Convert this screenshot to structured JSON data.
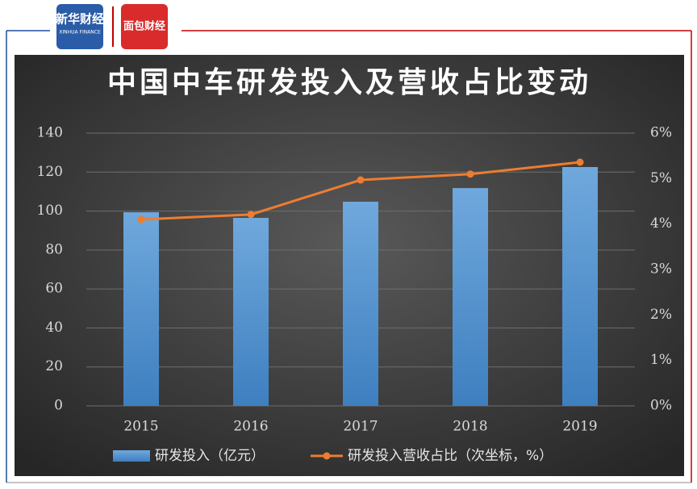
{
  "logos": {
    "xinhua_cn": "新华财经",
    "xinhua_en": "XINHUA FINANCE",
    "bread": "面包财经"
  },
  "chart_data": {
    "type": "bar_line",
    "title": "中国中车研发投入及营收占比变动",
    "categories": [
      "2015",
      "2016",
      "2017",
      "2018",
      "2019"
    ],
    "series": [
      {
        "name": "研发投入（亿元）",
        "type": "bar",
        "color": "#5b9bd5",
        "values": [
          99.4,
          96.5,
          104.8,
          111.8,
          122.6
        ]
      },
      {
        "name": "研发投入营收占比（次坐标，%）",
        "type": "line",
        "axis": "y2",
        "color": "#ed7d31",
        "values": [
          4.1,
          4.21,
          4.97,
          5.1,
          5.36
        ]
      }
    ],
    "ylim": [
      0,
      140
    ],
    "yticks": [
      0,
      20,
      40,
      60,
      80,
      100,
      120,
      140
    ],
    "y2lim": [
      0,
      6
    ],
    "y2ticks": [
      {
        "value": 0,
        "label": "0%"
      },
      {
        "value": 1,
        "label": "1%"
      },
      {
        "value": 2,
        "label": "2%"
      },
      {
        "value": 3,
        "label": "3%"
      },
      {
        "value": 4,
        "label": "4%"
      },
      {
        "value": 5,
        "label": "5%"
      },
      {
        "value": 6,
        "label": "6%"
      }
    ],
    "grid": true,
    "legend": "bottom"
  }
}
